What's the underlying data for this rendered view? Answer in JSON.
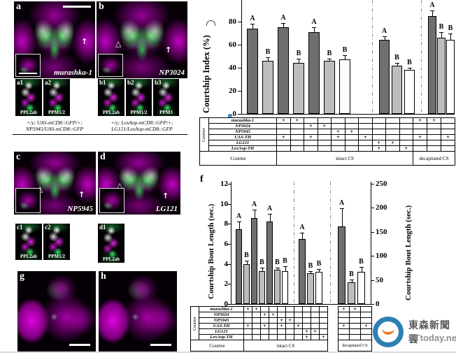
{
  "colors": {
    "dark_bar": "#6f6f6f",
    "light_bar": "#bdbdbd",
    "white_bar": "#ffffff",
    "magenta": "#cc00cc",
    "green": "#33dd66",
    "logo_blue": "#2e7fb4",
    "logo_orange": "#ef7c30"
  },
  "panels": {
    "a": {
      "label": "a",
      "genotype": "murashka-1"
    },
    "b": {
      "label": "b",
      "genotype": "NP3024"
    },
    "c": {
      "label": "c",
      "genotype": "NP5945"
    },
    "d": {
      "label": "d",
      "genotype": "LG121"
    },
    "g": {
      "label": "g"
    },
    "h": {
      "label": "h"
    },
    "subpanels": [
      {
        "label": "a1",
        "cell_type": "PPL2ab"
      },
      {
        "label": "a2",
        "cell_type": "PPM1/2"
      },
      {
        "label": "b1",
        "cell_type": "PPL2ab"
      },
      {
        "label": "b2",
        "cell_type": "PPM1/2"
      },
      {
        "label": "b3",
        "cell_type": "PPM3"
      },
      {
        "label": "c1",
        "cell_type": "PPL2ab"
      },
      {
        "label": "c2",
        "cell_type": "PPM1/2"
      },
      {
        "label": "d1",
        "cell_type": "PPL2ab"
      }
    ],
    "captions": {
      "left_line1": "+/y; UAS-mCD8::GFP/+;",
      "left_line2": "NP5945/UAS-mCD8::GFP",
      "right_line1": "+/y; LexAop-mCD8::GFP/+;",
      "right_line2": "LG121/LexAop-mCD8::GFP"
    }
  },
  "chart_data": [
    {
      "type": "bar",
      "ylabel": "Courtship Index (%)",
      "ylim": [
        0,
        100
      ],
      "yticks": [
        0,
        20,
        40,
        60,
        80
      ],
      "group_labels": [
        "intact CS",
        "decapitated CS"
      ],
      "bars": [
        {
          "value": 74,
          "err": 4,
          "sig": "A",
          "style": "dark"
        },
        {
          "value": 46,
          "err": 3,
          "sig": "B",
          "style": "light"
        },
        {
          "value": 75,
          "err": 4,
          "sig": "A",
          "style": "dark"
        },
        {
          "value": 44,
          "err": 4,
          "sig": "B",
          "style": "light"
        },
        {
          "value": 71,
          "err": 4,
          "sig": "A",
          "style": "dark"
        },
        {
          "value": 46,
          "err": 2,
          "sig": "B",
          "style": "light"
        },
        {
          "value": 47,
          "err": 4,
          "sig": "B",
          "style": "white"
        },
        {
          "value": 64,
          "err": 3,
          "sig": "A",
          "style": "dark"
        },
        {
          "value": 42,
          "err": 2,
          "sig": "B",
          "style": "light"
        },
        {
          "value": 38,
          "err": 2,
          "sig": "B",
          "style": "white"
        },
        {
          "value": 85,
          "err": 5,
          "sig": "A",
          "style": "dark"
        },
        {
          "value": 66,
          "err": 5,
          "sig": "B",
          "style": "light"
        },
        {
          "value": 64,
          "err": 6,
          "sig": "B",
          "style": "white"
        }
      ]
    },
    {
      "type": "bar",
      "panel_label": "f",
      "ylabel_left": "Courtship Bout Length (sec.)",
      "ylabel_right": "Courtship Bout Length (sec.)",
      "ylim_left": [
        0,
        12
      ],
      "ylim_right": [
        0,
        250
      ],
      "yticks_left": [
        0,
        2,
        4,
        6,
        8,
        10,
        12
      ],
      "yticks_right": [
        0,
        50,
        100,
        150,
        200,
        250
      ],
      "bars": [
        {
          "value": 7.5,
          "err": 0.7,
          "sig": "A",
          "style": "dark",
          "axis": "left"
        },
        {
          "value": 4.0,
          "err": 0.35,
          "sig": "B",
          "style": "light",
          "axis": "left"
        },
        {
          "value": 8.6,
          "err": 0.85,
          "sig": "A",
          "style": "dark",
          "axis": "left"
        },
        {
          "value": 3.3,
          "err": 0.3,
          "sig": "B",
          "style": "light",
          "axis": "left"
        },
        {
          "value": 8.2,
          "err": 0.8,
          "sig": "A",
          "style": "dark",
          "axis": "left"
        },
        {
          "value": 3.4,
          "err": 0.25,
          "sig": "B",
          "style": "light",
          "axis": "left"
        },
        {
          "value": 3.25,
          "err": 0.5,
          "sig": "B",
          "style": "white",
          "axis": "left"
        },
        {
          "value": 6.5,
          "err": 0.6,
          "sig": "A",
          "style": "dark",
          "axis": "left"
        },
        {
          "value": 3.1,
          "err": 0.2,
          "sig": "B",
          "style": "light",
          "axis": "left"
        },
        {
          "value": 3.2,
          "err": 0.3,
          "sig": "B",
          "style": "white",
          "axis": "left"
        },
        {
          "value": 162,
          "err": 37,
          "sig": "A",
          "style": "dark",
          "axis": "right"
        },
        {
          "value": 45,
          "err": 6,
          "sig": "B",
          "style": "light",
          "axis": "right"
        },
        {
          "value": 67,
          "err": 10,
          "sig": "B",
          "style": "white",
          "axis": "right"
        }
      ]
    }
  ],
  "genotype_table": {
    "courtier_label": "Courtier",
    "courtee_label": "Courtee",
    "rows": [
      {
        "label": "murashka-1",
        "plus": [
          1,
          2,
          11,
          12
        ]
      },
      {
        "label": "NP3024",
        "plus": [
          3,
          4
        ]
      },
      {
        "label": "NP5945",
        "plus": [
          5,
          6
        ]
      },
      {
        "label": "UAS-TH",
        "plus": [
          1,
          3,
          5,
          7,
          11,
          13
        ]
      },
      {
        "label": "LG121",
        "plus": [
          8,
          9
        ]
      },
      {
        "label": "LexAop-TH",
        "plus": [
          8,
          10
        ]
      }
    ],
    "sections": [
      {
        "label": "intact CS",
        "from": 1,
        "to": 10
      },
      {
        "label": "decapitated CS",
        "from": 11,
        "to": 13
      }
    ]
  },
  "watermark": {
    "cjk": "東森新聞雲",
    "latin": "ETtoday.net"
  }
}
